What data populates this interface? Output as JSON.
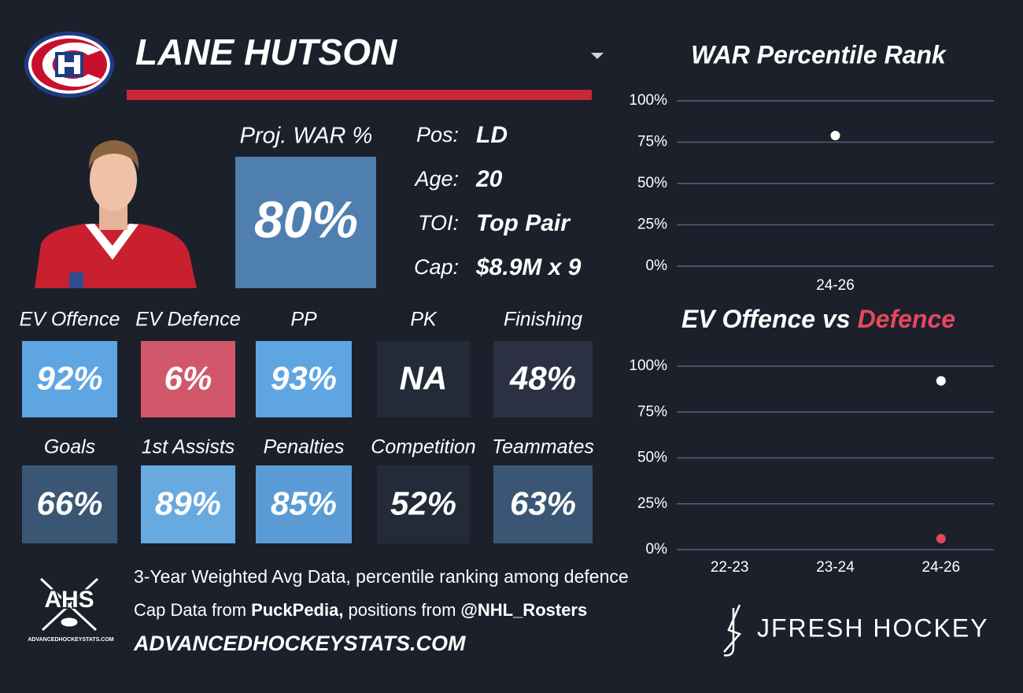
{
  "header": {
    "name": "LANE HUTSON"
  },
  "profile": {
    "proj_war_label": "Proj. WAR %",
    "proj_war": "80%",
    "proj_war_color": "#4f7fae",
    "bio": [
      {
        "label": "Pos:",
        "value": "LD"
      },
      {
        "label": "Age:",
        "value": "20"
      },
      {
        "label": "TOI:",
        "value": "Top Pair"
      },
      {
        "label": "Cap:",
        "value": "$8.9M x 9"
      }
    ]
  },
  "stats": [
    {
      "label": "EV Offence",
      "value": "92%",
      "color": "#5fa5e2"
    },
    {
      "label": "EV Defence",
      "value": "6%",
      "color": "#d3576a"
    },
    {
      "label": "PP",
      "value": "93%",
      "color": "#5fa5e2"
    },
    {
      "label": "PK",
      "value": "NA",
      "color": "#232b38"
    },
    {
      "label": "Finishing",
      "value": "48%",
      "color": "#2b3042"
    },
    {
      "label": "Goals",
      "value": "66%",
      "color": "#3b5674"
    },
    {
      "label": "1st Assists",
      "value": "89%",
      "color": "#68aae0"
    },
    {
      "label": "Penalties",
      "value": "85%",
      "color": "#5a9bd5"
    },
    {
      "label": "Competition",
      "value": "52%",
      "color": "#232b38"
    },
    {
      "label": "Teammates",
      "value": "63%",
      "color": "#3b5674"
    }
  ],
  "footer": {
    "note": "3-Year Weighted Avg Data, percentile ranking among defence",
    "credits": [
      "Cap Data from",
      "PuckPedia,",
      "positions from",
      "@NHL_Rosters"
    ],
    "site": "ADVANCEDHOCKEYSTATS.COM",
    "logo_text": "AHS",
    "logo_subtext": "ADVANCEDHOCKEYSTATS.COM",
    "brand": "JFRESH HOCKEY"
  },
  "chart_data": [
    {
      "type": "scatter",
      "title": "WAR Percentile Rank",
      "categories": [
        "24-26"
      ],
      "series": [
        {
          "color": "#ffffff",
          "values": [
            79
          ]
        }
      ],
      "ylim": [
        0,
        100
      ],
      "yticks": [
        {
          "value": 0,
          "label": "0%"
        },
        {
          "value": 25,
          "label": "25%"
        },
        {
          "value": 50,
          "label": "50%"
        },
        {
          "value": 75,
          "label": "75%"
        },
        {
          "value": 100,
          "label": "100%"
        }
      ],
      "grid": true
    },
    {
      "type": "scatter",
      "title": [
        "EV Offence vs",
        "Defence"
      ],
      "categories": [
        "22-23",
        "23-24",
        "24-26"
      ],
      "series": [
        {
          "color": "#ffffff",
          "values": [
            null,
            null,
            92
          ]
        },
        {
          "color": "#e5475f",
          "values": [
            null,
            null,
            6
          ]
        }
      ],
      "ylim": [
        0,
        100
      ],
      "yticks": [
        {
          "value": 0,
          "label": "0%"
        },
        {
          "value": 25,
          "label": "25%"
        },
        {
          "value": 50,
          "label": "50%"
        },
        {
          "value": 75,
          "label": "75%"
        },
        {
          "value": 100,
          "label": "100%"
        }
      ],
      "grid": true
    }
  ]
}
